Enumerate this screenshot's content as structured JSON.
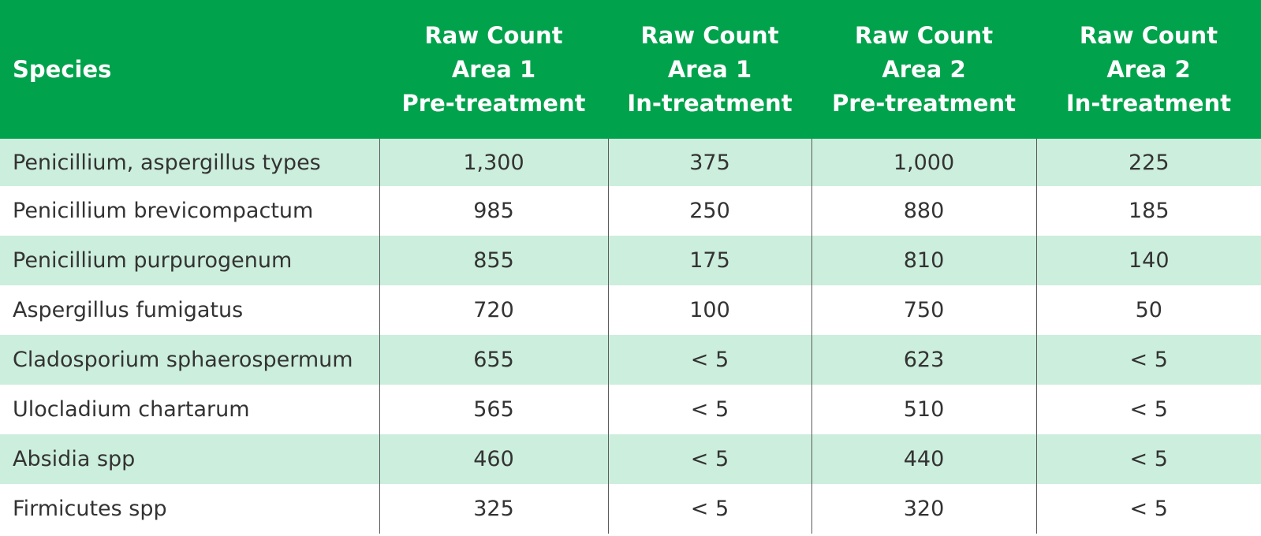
{
  "table": {
    "headers": [
      "Species",
      "Raw Count\nArea 1\nPre-treatment",
      "Raw Count\nArea 1\nIn-treatment",
      "Raw Count\nArea 2\nPre-treatment",
      "Raw Count\nArea 2\nIn-treatment"
    ],
    "rows": [
      [
        "Penicillium, aspergillus types",
        "1,300",
        "375",
        "1,000",
        "225"
      ],
      [
        "Penicillium brevicompactum",
        "985",
        "250",
        "880",
        "185"
      ],
      [
        "Penicillium purpurogenum",
        "855",
        "175",
        "810",
        "140"
      ],
      [
        "Aspergillus fumigatus",
        "720",
        "100",
        "750",
        "50"
      ],
      [
        "Cladosporium sphaerospermum",
        "655",
        "< 5",
        "623",
        "< 5"
      ],
      [
        "Ulocladium chartarum",
        "565",
        "< 5",
        "510",
        "< 5"
      ],
      [
        "Absidia spp",
        "460",
        "< 5",
        "440",
        "< 5"
      ],
      [
        "Firmicutes spp",
        "325",
        "< 5",
        "320",
        "< 5"
      ]
    ]
  },
  "colors": {
    "header_background": "#00a24b",
    "header_text": "#ffffff",
    "shaded_row": "#cceedd",
    "body_text": "#333333",
    "column_divider": "#5a5a5a"
  }
}
